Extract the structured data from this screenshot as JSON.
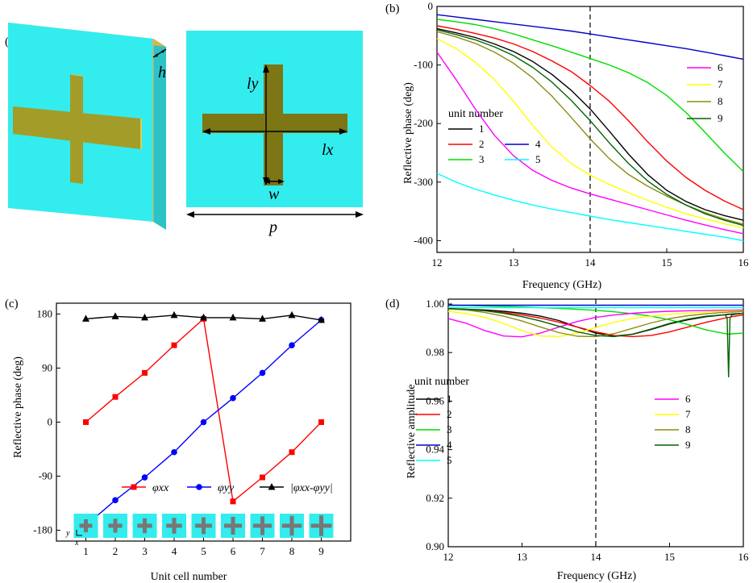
{
  "panel_labels": {
    "a": "(a)",
    "b": "(b)",
    "c": "(c)",
    "d": "(d)"
  },
  "geometry_labels": {
    "h": "h",
    "ly": "ly",
    "lx": "lx",
    "w": "w",
    "p": "p"
  },
  "colors": {
    "substrate": "#33ecee",
    "substrate_side": "#2bc3c8",
    "patch": "#a39c28",
    "patch_dark": "#7c7614",
    "copper_edge": "#e6b455",
    "unit_colors": [
      "#000000",
      "#ff0000",
      "#00dd00",
      "#0000cc",
      "#00ffff",
      "#ff00ff",
      "#ffff00",
      "#8c8c14",
      "#006400"
    ]
  },
  "chart_data": [
    {
      "panel": "b",
      "type": "line",
      "xlabel": "Frequency (GHz)",
      "ylabel": "Reflective phase (deg)",
      "xlim": [
        12,
        16
      ],
      "ylim": [
        -420,
        0
      ],
      "xticks": [
        "12",
        "13",
        "14",
        "15",
        "16"
      ],
      "yticks": [
        "0",
        "-100",
        "-200",
        "-300",
        "-400"
      ],
      "xticks_val": [
        12,
        13,
        14,
        15,
        16
      ],
      "yticks_val": [
        0,
        -100,
        -200,
        -300,
        -400
      ],
      "marker_line_x": 14,
      "legend_title": "unit number",
      "x": [
        12,
        12.25,
        12.5,
        12.75,
        13,
        13.25,
        13.5,
        13.75,
        14,
        14.25,
        14.5,
        14.75,
        15,
        15.25,
        15.5,
        15.75,
        16
      ],
      "series": [
        {
          "name": "1",
          "values": [
            -38,
            -45,
            -53,
            -64,
            -77,
            -94,
            -116,
            -143,
            -175,
            -213,
            -252,
            -287,
            -314,
            -333,
            -347,
            -357,
            -365
          ]
        },
        {
          "name": "2",
          "values": [
            -33,
            -39,
            -46,
            -54,
            -64,
            -77,
            -93,
            -111,
            -135,
            -162,
            -195,
            -231,
            -264,
            -292,
            -314,
            -332,
            -347
          ]
        },
        {
          "name": "3",
          "values": [
            -22,
            -26,
            -31,
            -38,
            -47,
            -57,
            -67,
            -78,
            -89,
            -100,
            -113,
            -130,
            -152,
            -181,
            -215,
            -250,
            -282
          ]
        },
        {
          "name": "4",
          "values": [
            -14,
            -18,
            -22,
            -26,
            -30,
            -34,
            -38,
            -42,
            -47,
            -52,
            -57,
            -62,
            -67,
            -72,
            -78,
            -84,
            -90
          ]
        },
        {
          "name": "5",
          "values": [
            -285,
            -300,
            -312,
            -322,
            -331,
            -339,
            -346,
            -352,
            -358,
            -364,
            -369,
            -374,
            -379,
            -384,
            -389,
            -394,
            -400
          ]
        },
        {
          "name": "6",
          "values": [
            -78,
            -125,
            -175,
            -220,
            -255,
            -280,
            -297,
            -310,
            -320,
            -329,
            -338,
            -347,
            -356,
            -365,
            -373,
            -381,
            -388
          ]
        },
        {
          "name": "7",
          "values": [
            -55,
            -72,
            -95,
            -125,
            -162,
            -203,
            -240,
            -268,
            -288,
            -304,
            -318,
            -331,
            -343,
            -354,
            -363,
            -371,
            -378
          ]
        },
        {
          "name": "8",
          "values": [
            -43,
            -52,
            -63,
            -78,
            -97,
            -122,
            -153,
            -189,
            -226,
            -260,
            -287,
            -307,
            -324,
            -339,
            -352,
            -363,
            -372
          ]
        },
        {
          "name": "9",
          "values": [
            -40,
            -48,
            -57,
            -69,
            -84,
            -104,
            -129,
            -160,
            -195,
            -233,
            -268,
            -298,
            -321,
            -339,
            -354,
            -365,
            -374
          ]
        }
      ]
    },
    {
      "panel": "c",
      "type": "line",
      "xlabel": "Unit cell number",
      "ylabel": "Reflective phase (deg)",
      "xlim": [
        0,
        10
      ],
      "ylim": [
        -198,
        198
      ],
      "xticks": [
        "1",
        "2",
        "3",
        "4",
        "5",
        "6",
        "7",
        "8",
        "9"
      ],
      "yticks": [
        "180",
        "90",
        "0",
        "-90",
        "-180"
      ],
      "xticks_val": [
        1,
        2,
        3,
        4,
        5,
        6,
        7,
        8,
        9
      ],
      "yticks_val": [
        180,
        90,
        0,
        -90,
        -180
      ],
      "x": [
        1,
        2,
        3,
        4,
        5,
        6,
        7,
        8,
        9
      ],
      "series": [
        {
          "name": "φxx",
          "sub": "xx",
          "color": "#ff0000",
          "marker": "square",
          "values": [
            0,
            42,
            82,
            128,
            172,
            -132,
            -92,
            -50,
            0
          ]
        },
        {
          "name": "φyy",
          "sub": "yy",
          "color": "#0000ff",
          "marker": "circle",
          "values": [
            -172,
            -130,
            -92,
            -50,
            0,
            40,
            82,
            128,
            170
          ]
        },
        {
          "name": "|φxx-φyy|",
          "color": "#000000",
          "marker": "triangle",
          "values": [
            172,
            176,
            174,
            178,
            174,
            174,
            172,
            178,
            170
          ]
        }
      ],
      "axis_hint_x": "x",
      "axis_hint_y": "y"
    },
    {
      "panel": "d",
      "type": "line",
      "xlabel": "Frequency (GHz)",
      "ylabel": "Reflective amplitude",
      "xlim": [
        12,
        16
      ],
      "ylim": [
        0.9,
        1.002
      ],
      "xticks": [
        "12",
        "13",
        "14",
        "15",
        "16"
      ],
      "yticks": [
        "1.00",
        "0.98",
        "0.96",
        "0.94",
        "0.92",
        "0.90"
      ],
      "xticks_val": [
        12,
        13,
        14,
        15,
        16
      ],
      "yticks_val": [
        1.0,
        0.98,
        0.96,
        0.94,
        0.92,
        0.9
      ],
      "marker_line_x": 14,
      "legend_title": "unit number",
      "x": [
        12,
        12.25,
        12.5,
        12.75,
        13,
        13.25,
        13.5,
        13.75,
        14,
        14.25,
        14.5,
        14.75,
        15,
        15.25,
        15.5,
        15.75,
        15.78,
        15.8,
        15.82,
        15.85,
        16
      ],
      "series": [
        {
          "name": "1",
          "values": [
            0.998,
            0.9978,
            0.9975,
            0.997,
            0.9962,
            0.995,
            0.9932,
            0.9905,
            0.988,
            0.9868,
            0.9875,
            0.9895,
            0.9918,
            0.9935,
            0.9948,
            0.9956,
            0.9957,
            0.9958,
            0.9958,
            0.9959,
            0.9962
          ]
        },
        {
          "name": "2",
          "values": [
            0.998,
            0.9977,
            0.9972,
            0.9965,
            0.9955,
            0.9942,
            0.9925,
            0.9905,
            0.9885,
            0.987,
            0.9866,
            0.987,
            0.9885,
            0.9905,
            0.9925,
            0.9942,
            0.9944,
            0.9945,
            0.9946,
            0.9948,
            0.9955
          ]
        },
        {
          "name": "3",
          "values": [
            0.9995,
            0.9994,
            0.9992,
            0.999,
            0.9988,
            0.9985,
            0.9982,
            0.9978,
            0.9974,
            0.9968,
            0.996,
            0.995,
            0.9935,
            0.9915,
            0.9893,
            0.9878,
            0.9877,
            0.9876,
            0.9876,
            0.9877,
            0.988
          ]
        },
        {
          "name": "4",
          "values": [
            0.9995,
            0.9995,
            0.9995,
            0.9995,
            0.9995,
            0.9995,
            0.9995,
            0.9995,
            0.9995,
            0.9995,
            0.9995,
            0.9995,
            0.9995,
            0.9995,
            0.9995,
            0.9995,
            0.9995,
            0.9995,
            0.9995,
            0.9995,
            0.9995
          ]
        },
        {
          "name": "5",
          "values": [
            0.9985,
            0.9985,
            0.9985,
            0.9985,
            0.9985,
            0.9985,
            0.9985,
            0.9985,
            0.9985,
            0.9985,
            0.9985,
            0.9985,
            0.9985,
            0.9985,
            0.9985,
            0.9985,
            0.9985,
            0.9985,
            0.9985,
            0.9985,
            0.9985
          ]
        },
        {
          "name": "6",
          "values": [
            0.994,
            0.992,
            0.989,
            0.9868,
            0.9865,
            0.988,
            0.9905,
            0.9928,
            0.9945,
            0.9955,
            0.9962,
            0.9967,
            0.997,
            0.9972,
            0.9973,
            0.9974,
            0.9974,
            0.9974,
            0.9974,
            0.9974,
            0.9975
          ]
        },
        {
          "name": "7",
          "values": [
            0.997,
            0.996,
            0.9945,
            0.992,
            0.989,
            0.9868,
            0.9866,
            0.988,
            0.9903,
            0.9925,
            0.994,
            0.995,
            0.9958,
            0.9963,
            0.9967,
            0.997,
            0.997,
            0.997,
            0.997,
            0.997,
            0.9972
          ]
        },
        {
          "name": "8",
          "values": [
            0.998,
            0.9975,
            0.9965,
            0.995,
            0.993,
            0.9905,
            0.9882,
            0.9867,
            0.9866,
            0.9878,
            0.99,
            0.9922,
            0.994,
            0.9952,
            0.996,
            0.9966,
            0.9966,
            0.9967,
            0.9967,
            0.9967,
            0.997
          ]
        },
        {
          "name": "9",
          "values": [
            0.9982,
            0.9978,
            0.9972,
            0.9962,
            0.9948,
            0.993,
            0.9908,
            0.9885,
            0.987,
            0.9866,
            0.9876,
            0.9897,
            0.992,
            0.9938,
            0.995,
            0.9956,
            0.9944,
            0.97,
            0.9944,
            0.9956,
            0.9962
          ]
        }
      ]
    }
  ]
}
